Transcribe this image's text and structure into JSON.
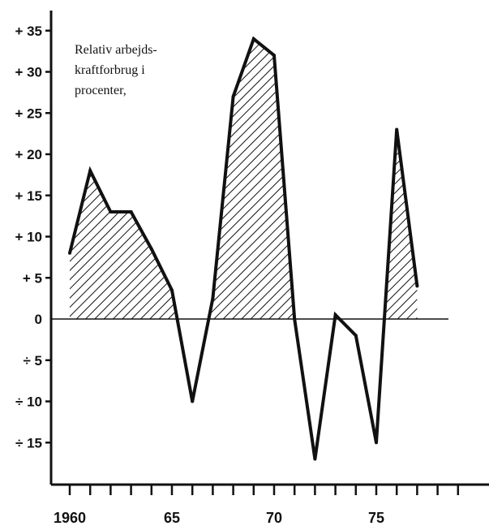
{
  "chart_data": {
    "type": "area",
    "title": "",
    "xlabel": "",
    "ylabel": "",
    "annotation": [
      "Relativ arbejds-",
      "kraftforbrug i",
      "procenter,"
    ],
    "ytick_labels": [
      {
        "value": 35,
        "label": "+ 35"
      },
      {
        "value": 30,
        "label": "+ 30"
      },
      {
        "value": 25,
        "label": "+ 25"
      },
      {
        "value": 20,
        "label": "+ 20"
      },
      {
        "value": 15,
        "label": "+ 15"
      },
      {
        "value": 10,
        "label": "+ 10"
      },
      {
        "value": 5,
        "label": "+  5"
      },
      {
        "value": 0,
        "label": "0"
      },
      {
        "value": -5,
        "label": "÷  5"
      },
      {
        "value": -10,
        "label": "÷ 10"
      },
      {
        "value": -15,
        "label": "÷ 15"
      }
    ],
    "xtick_labels": [
      {
        "value": 1960,
        "label": "1960"
      },
      {
        "value": 1965,
        "label": "65"
      },
      {
        "value": 1970,
        "label": "70"
      },
      {
        "value": 1975,
        "label": "75"
      }
    ],
    "xlim": [
      1959,
      1980
    ],
    "ylim": [
      -24,
      37
    ],
    "positive_fill": "hatched",
    "series": [
      {
        "x": [
          1960,
          1961,
          1962,
          1963,
          1964,
          1965,
          1966,
          1967,
          1968,
          1969,
          1970,
          1971,
          1972,
          1973,
          1974,
          1975,
          1976,
          1977
        ],
        "values": [
          8,
          18,
          13,
          13,
          8.5,
          3.5,
          -10,
          2.5,
          27,
          34,
          32,
          0,
          -17,
          0.5,
          -2,
          -15,
          23,
          4
        ]
      }
    ]
  }
}
